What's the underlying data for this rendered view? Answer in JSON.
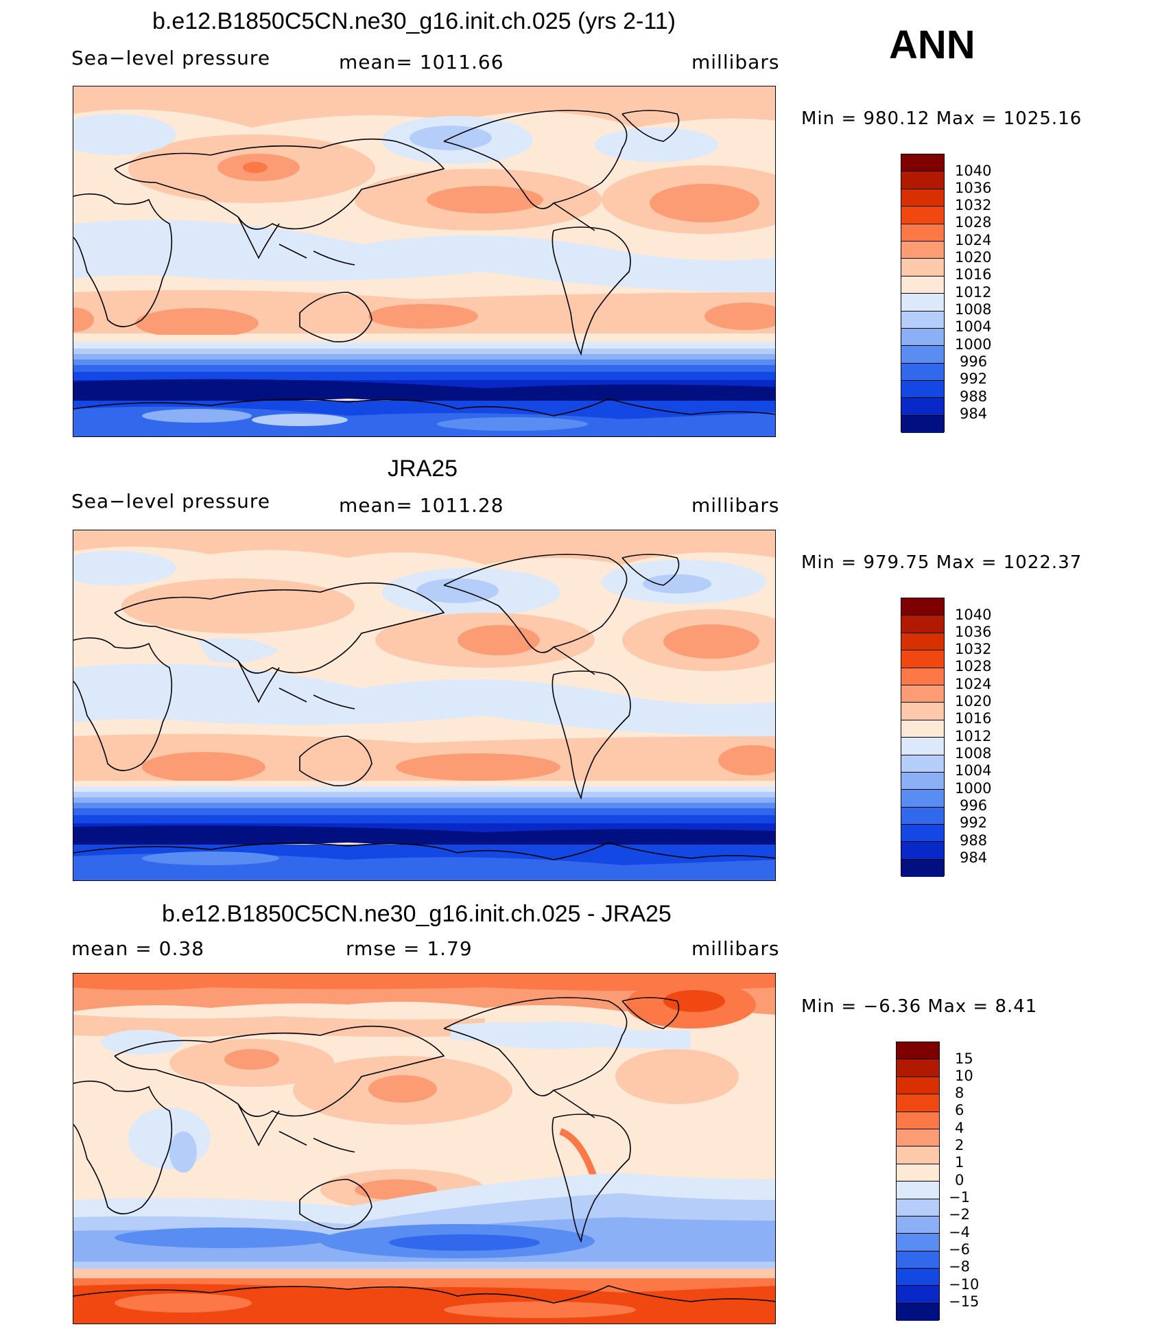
{
  "ann_label": "ANN",
  "panels": [
    {
      "title": "b.e12.B1850C5CN.ne30_g16.init.ch.025 (yrs 2-11)",
      "left": "Sea−level pressure",
      "center": "mean=  1011.66",
      "right": "millibars",
      "minmax": "Min  =  980.12  Max  =  1025.16",
      "colorbar_labels": [
        "1040",
        "1036",
        "1032",
        "1028",
        "1024",
        "1020",
        "1016",
        "1012",
        "1008",
        "1004",
        "1000",
        "996",
        "992",
        "988",
        "984"
      ]
    },
    {
      "title": "JRA25",
      "left": "Sea−level pressure",
      "center": "mean=  1011.28",
      "right": "millibars",
      "minmax": "Min  =  979.75  Max  =  1022.37",
      "colorbar_labels": [
        "1040",
        "1036",
        "1032",
        "1028",
        "1024",
        "1020",
        "1016",
        "1012",
        "1008",
        "1004",
        "1000",
        "996",
        "992",
        "988",
        "984"
      ]
    },
    {
      "title": "b.e12.B1850C5CN.ne30_g16.init.ch.025 - JRA25",
      "left": "mean  =     0.38",
      "center": "rmse  =     1.79",
      "right": "millibars",
      "minmax": "Min  =    −6.36  Max  =     8.41",
      "colorbar_labels": [
        "15",
        "10",
        "8",
        "6",
        "4",
        "2",
        "1",
        "0",
        "−1",
        "−2",
        "−4",
        "−6",
        "−8",
        "−10",
        "−15"
      ]
    }
  ],
  "colors": {
    "abs_scale": [
      "#7f0000",
      "#b21a00",
      "#d83000",
      "#f04810",
      "#fc7846",
      "#fc9c74",
      "#fec8aa",
      "#fee8d6",
      "#dce9fb",
      "#b4cdf9",
      "#8cb0f6",
      "#5a8df2",
      "#3268ec",
      "#1448e4",
      "#0828c8",
      "#001080"
    ],
    "diff_scale": [
      "#7f0000",
      "#b21a00",
      "#d83000",
      "#f04810",
      "#fc7846",
      "#fc9c74",
      "#fec8aa",
      "#fee8d6",
      "#dce9fb",
      "#b4cdf9",
      "#8cb0f6",
      "#5a8df2",
      "#3268ec",
      "#1448e4",
      "#0828c8",
      "#001080"
    ]
  }
}
